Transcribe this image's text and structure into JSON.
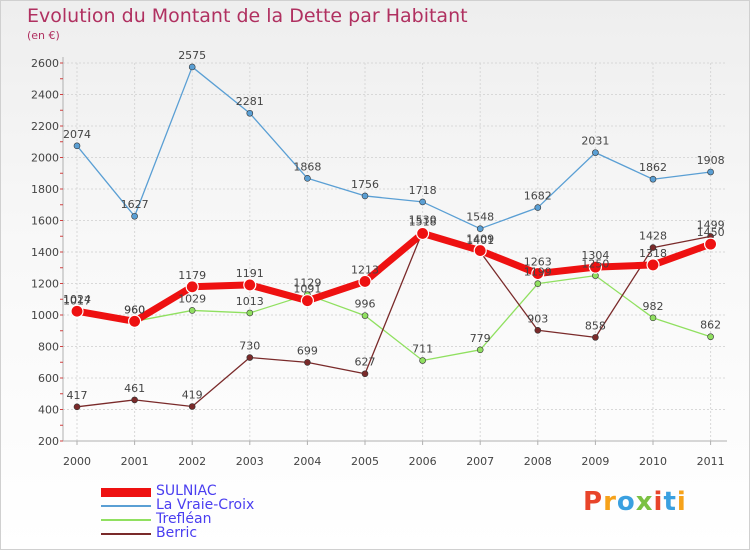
{
  "title": "Evolution du Montant de la Dette par Habitant",
  "unit_label": "(en €)",
  "logo_text": "Proxiti",
  "logo_colors": [
    "#e8442a",
    "#f6a21a",
    "#3aa0e0",
    "#7bc142",
    "#e8442a",
    "#3aa0e0",
    "#f6a21a"
  ],
  "chart_data": {
    "type": "line",
    "x": [
      "2000",
      "2001",
      "2002",
      "2003",
      "2004",
      "2005",
      "2006",
      "2007",
      "2008",
      "2009",
      "2010",
      "2011"
    ],
    "ylim": [
      200,
      2600
    ],
    "yticks": [
      200,
      400,
      600,
      800,
      1000,
      1200,
      1400,
      1600,
      1800,
      2000,
      2200,
      2400,
      2600
    ],
    "grid": true,
    "legend_position": "bottom-left",
    "series": [
      {
        "name": "SULNIAC",
        "color": "#ee1111",
        "width": 7,
        "marker": 6,
        "values": [
          1024,
          960,
          1179,
          1191,
          1091,
          1213,
          1518,
          1409,
          1263,
          1304,
          1318,
          1450
        ]
      },
      {
        "name": "La Vraie-Croix",
        "color": "#5a9fd4",
        "width": 1.3,
        "marker": 3,
        "values": [
          2074,
          1627,
          2575,
          2281,
          1868,
          1756,
          1718,
          1548,
          1682,
          2031,
          1862,
          1908
        ]
      },
      {
        "name": "Trefléan",
        "color": "#90e060",
        "width": 1.3,
        "marker": 3,
        "values": [
          1017,
          960,
          1029,
          1013,
          1129,
          996,
          711,
          779,
          1199,
          1250,
          982,
          862
        ]
      },
      {
        "name": "Berric",
        "color": "#7a2a2a",
        "width": 1.3,
        "marker": 3,
        "values": [
          417,
          461,
          419,
          730,
          699,
          627,
          1530,
          1401,
          903,
          858,
          1428,
          1499
        ]
      }
    ]
  }
}
